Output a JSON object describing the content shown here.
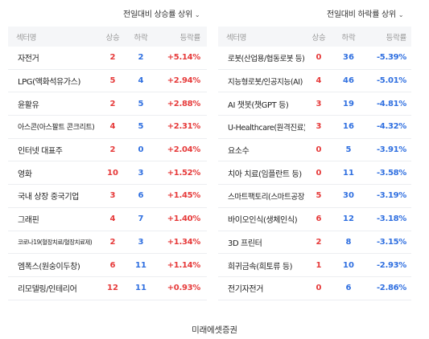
{
  "left": {
    "dropdown_label": "전일대비 상승률 상위",
    "headers": {
      "name": "섹터명",
      "up": "상승",
      "down": "하락",
      "rate": "등락률"
    },
    "rows": [
      {
        "name": "자전거",
        "up": "2",
        "down": "2",
        "rate": "+5.14%"
      },
      {
        "name": "LPG(액화석유가스)",
        "up": "5",
        "down": "4",
        "rate": "+2.94%"
      },
      {
        "name": "윤활유",
        "up": "2",
        "down": "5",
        "rate": "+2.88%"
      },
      {
        "name": "아스콘(아스팔트 콘크리트)",
        "up": "4",
        "down": "5",
        "rate": "+2.31%"
      },
      {
        "name": "인터넷 대표주",
        "up": "2",
        "down": "0",
        "rate": "+2.04%"
      },
      {
        "name": "영화",
        "up": "10",
        "down": "3",
        "rate": "+1.52%"
      },
      {
        "name": "국내 상장 중국기업",
        "up": "3",
        "down": "6",
        "rate": "+1.45%"
      },
      {
        "name": "그래핀",
        "up": "4",
        "down": "7",
        "rate": "+1.40%"
      },
      {
        "name": "코로나19(혈장치료/혈장치료제)",
        "up": "2",
        "down": "3",
        "rate": "+1.34%"
      },
      {
        "name": "엠폭스(원숭이두창)",
        "up": "6",
        "down": "11",
        "rate": "+1.14%"
      },
      {
        "name": "리모델링/인테리어",
        "up": "12",
        "down": "11",
        "rate": "+0.93%"
      }
    ]
  },
  "right": {
    "dropdown_label": "전일대비 하락률 상위",
    "headers": {
      "name": "섹터명",
      "up": "상승",
      "down": "하락",
      "rate": "등락률"
    },
    "rows": [
      {
        "name": "로봇(산업용/협동로봇 등)",
        "up": "0",
        "down": "36",
        "rate": "-5.39%"
      },
      {
        "name": "지능형로봇/인공지능(AI)",
        "up": "4",
        "down": "46",
        "rate": "-5.01%"
      },
      {
        "name": "AI 챗봇(챗GPT 등)",
        "up": "3",
        "down": "19",
        "rate": "-4.81%"
      },
      {
        "name": "U-Healthcare(원격진료)",
        "up": "3",
        "down": "16",
        "rate": "-4.32%"
      },
      {
        "name": "요소수",
        "up": "0",
        "down": "5",
        "rate": "-3.91%"
      },
      {
        "name": "치아 치료(임플란트 등)",
        "up": "0",
        "down": "11",
        "rate": "-3.58%"
      },
      {
        "name": "스마트팩토리(스마트공장)",
        "up": "5",
        "down": "30",
        "rate": "-3.19%"
      },
      {
        "name": "바이오인식(생체인식)",
        "up": "6",
        "down": "12",
        "rate": "-3.18%"
      },
      {
        "name": "3D 프린터",
        "up": "2",
        "down": "8",
        "rate": "-3.15%"
      },
      {
        "name": "희귀금속(희토류 등)",
        "up": "1",
        "down": "10",
        "rate": "-2.93%"
      },
      {
        "name": "전기자전거",
        "up": "0",
        "down": "6",
        "rate": "-2.86%"
      }
    ]
  },
  "footer": {
    "source": "미래에셋증권"
  },
  "colors": {
    "up": "#e63a3a",
    "down": "#2f6fe0",
    "header_bg": "#f5f6f8"
  }
}
